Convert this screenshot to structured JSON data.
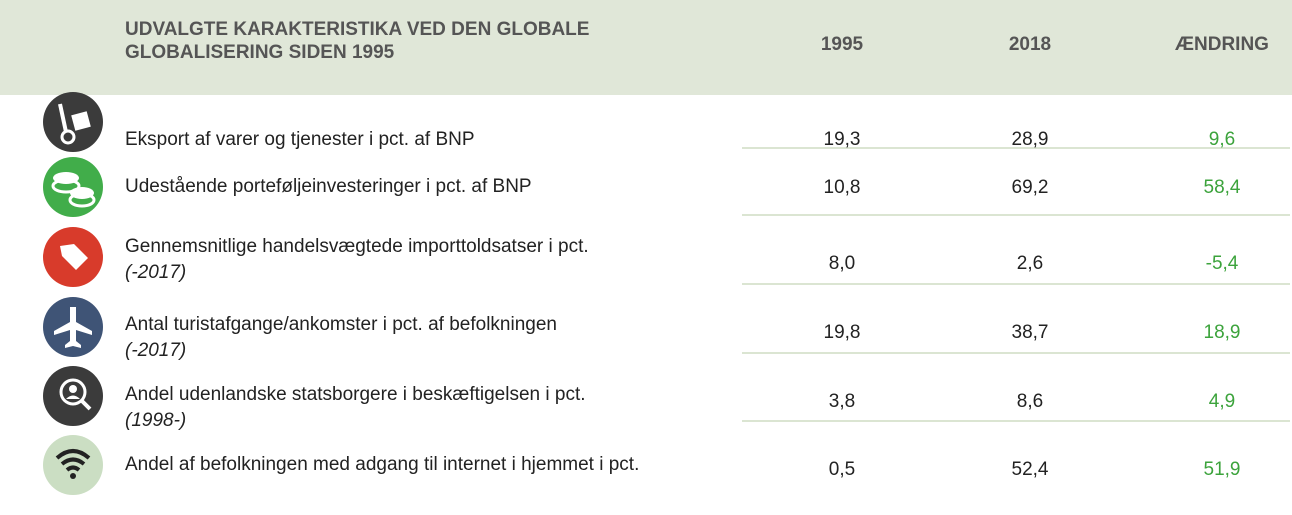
{
  "header": {
    "title": "UDVALGTE KARAKTERISTIKA VED DEN GLOBALE GLOBALISERING SIDEN 1995",
    "columns": [
      "1995",
      "2018",
      "ÆNDRING"
    ]
  },
  "rows": [
    {
      "label": "Eksport af varer og tjenester i pct. af BNP",
      "values": [
        "19,3",
        "28,9",
        "9,6"
      ]
    },
    {
      "label": "Udestående porteføljeinvesteringer i pct. af BNP",
      "values": [
        "10,8",
        "69,2",
        "58,4"
      ]
    },
    {
      "label": "Gennemsnitlige handelsvægtede importtoldsatser i pct.",
      "note": "(-2017)",
      "values": [
        "8,0",
        "2,6",
        "-5,4"
      ]
    },
    {
      "label": "Antal turistafgange/ankomster i pct. af befolkningen",
      "note": "(-2017)",
      "values": [
        "19,8",
        "38,7",
        "18,9"
      ]
    },
    {
      "label": "Andel udenlandske statsborgere i beskæftigelsen i pct.",
      "note": "(1998-)",
      "values": [
        "3,8",
        "8,6",
        "4,9"
      ]
    },
    {
      "label": "Andel af befolkningen med adgang til internet i hjemmet i pct.",
      "values": [
        "0,5",
        "52,4",
        "51,9"
      ]
    }
  ]
}
